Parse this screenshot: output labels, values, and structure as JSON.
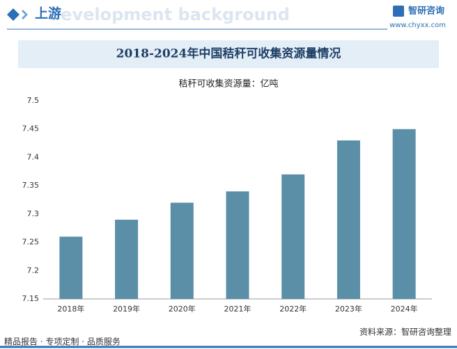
{
  "header": {
    "section": "上游",
    "subtitle": "development background",
    "brand": "智研咨询",
    "website": "www.chyxx.com"
  },
  "chart_data": {
    "type": "bar",
    "title": "2018-2024年中国秸秆可收集资源量情况",
    "y_label": "秸秆可收集资源量：亿吨",
    "categories": [
      "2018年",
      "2019年",
      "2020年",
      "2021年",
      "2022年",
      "2023年",
      "2024年"
    ],
    "values": [
      7.26,
      7.29,
      7.32,
      7.34,
      7.37,
      7.43,
      7.45
    ],
    "color": "#5b8fa8",
    "ylim": [
      7.15,
      7.5
    ],
    "yticks": [
      7.15,
      7.2,
      7.25,
      7.3,
      7.35,
      7.4,
      7.45,
      7.5
    ],
    "grid": false
  },
  "footer": {
    "slogan": "精品报告 · 专项定制 · 品质服务",
    "source": "资料来源：智研咨询整理"
  }
}
